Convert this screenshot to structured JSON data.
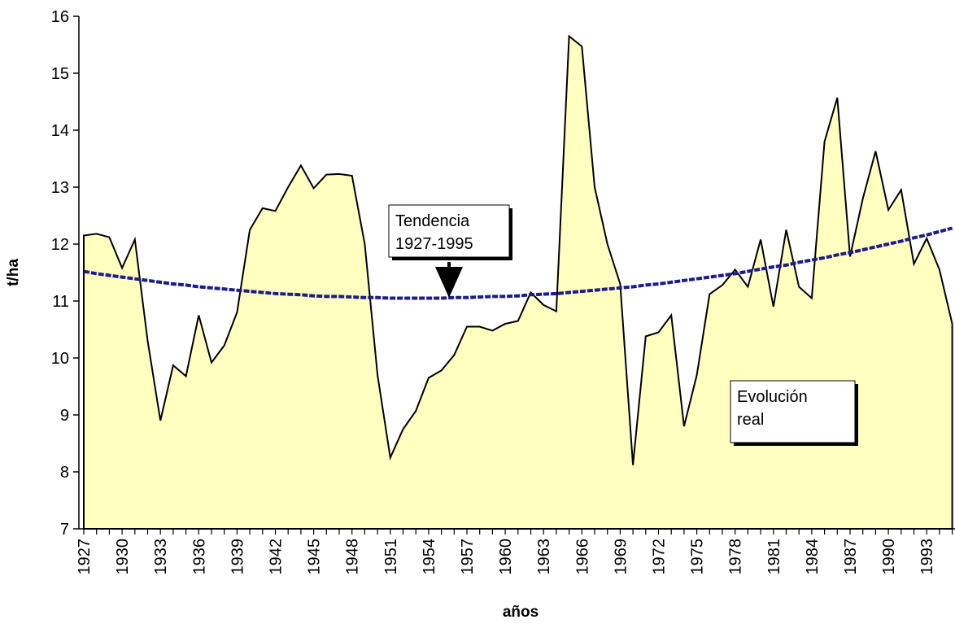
{
  "chart_data": {
    "type": "area",
    "y_label": "t/ha",
    "x_label": "años",
    "categories": [
      "1927",
      null,
      null,
      "1930",
      null,
      null,
      "1933",
      null,
      null,
      "1936",
      null,
      null,
      "1939",
      null,
      null,
      "1942",
      null,
      null,
      "1945",
      null,
      null,
      "1948",
      null,
      null,
      "1951",
      null,
      null,
      "1954",
      null,
      null,
      "1957",
      null,
      null,
      "1960",
      null,
      null,
      "1963",
      null,
      null,
      "1966",
      null,
      null,
      "1969",
      null,
      null,
      "1972",
      null,
      null,
      "1975",
      null,
      null,
      "1978",
      null,
      null,
      "1981",
      null,
      null,
      "1984",
      null,
      null,
      "1987",
      null,
      null,
      "1990",
      null,
      null,
      "1993",
      null,
      null
    ],
    "series": [
      {
        "color": "#ffffc0",
        "line_color": "#000000",
        "values": [
          12.15,
          12.18,
          12.12,
          11.58,
          12.08,
          10.3,
          8.9,
          9.87,
          9.68,
          10.75,
          9.92,
          10.22,
          10.8,
          12.25,
          12.63,
          12.58,
          13.0,
          13.38,
          12.98,
          13.22,
          13.23,
          13.2,
          12.0,
          9.7,
          8.25,
          8.75,
          9.07,
          9.65,
          9.78,
          10.05,
          10.55,
          10.55,
          10.48,
          10.6,
          10.65,
          11.15,
          10.93,
          10.82,
          15.65,
          15.47,
          13.0,
          12.0,
          11.3,
          8.12,
          10.38,
          10.45,
          10.75,
          8.8,
          9.7,
          11.12,
          11.28,
          11.55,
          11.25,
          12.08,
          10.9,
          12.25,
          11.25,
          11.05,
          13.8,
          14.57,
          11.78,
          12.8,
          13.63,
          12.6,
          12.95,
          11.65,
          12.1,
          11.55,
          10.6
        ]
      },
      {
        "type": "line",
        "color": "#1c1c8c",
        "values": [
          11.52,
          11.48,
          11.45,
          11.42,
          11.39,
          11.36,
          11.33,
          11.3,
          11.28,
          11.25,
          11.23,
          11.21,
          11.19,
          11.17,
          11.15,
          11.13,
          11.12,
          11.11,
          11.09,
          11.08,
          11.08,
          11.07,
          11.06,
          11.06,
          11.05,
          11.05,
          11.05,
          11.05,
          11.05,
          11.06,
          11.06,
          11.07,
          11.08,
          11.08,
          11.09,
          11.11,
          11.12,
          11.13,
          11.15,
          11.17,
          11.19,
          11.21,
          11.23,
          11.25,
          11.28,
          11.3,
          11.33,
          11.36,
          11.39,
          11.42,
          11.45,
          11.48,
          11.52,
          11.56,
          11.6,
          11.63,
          11.68,
          11.72,
          11.76,
          11.81,
          11.85,
          11.9,
          11.95,
          12.0,
          12.05,
          12.11,
          12.16,
          12.22,
          12.28
        ]
      }
    ],
    "annotations": [
      {
        "lines": [
          "Tendencia",
          "1927-1995"
        ]
      },
      {
        "lines": [
          "Evolución",
          "real"
        ]
      }
    ],
    "ylim": [
      7,
      16
    ],
    "yticks": [
      7,
      8,
      9,
      10,
      11,
      12,
      13,
      14,
      15,
      16
    ]
  }
}
